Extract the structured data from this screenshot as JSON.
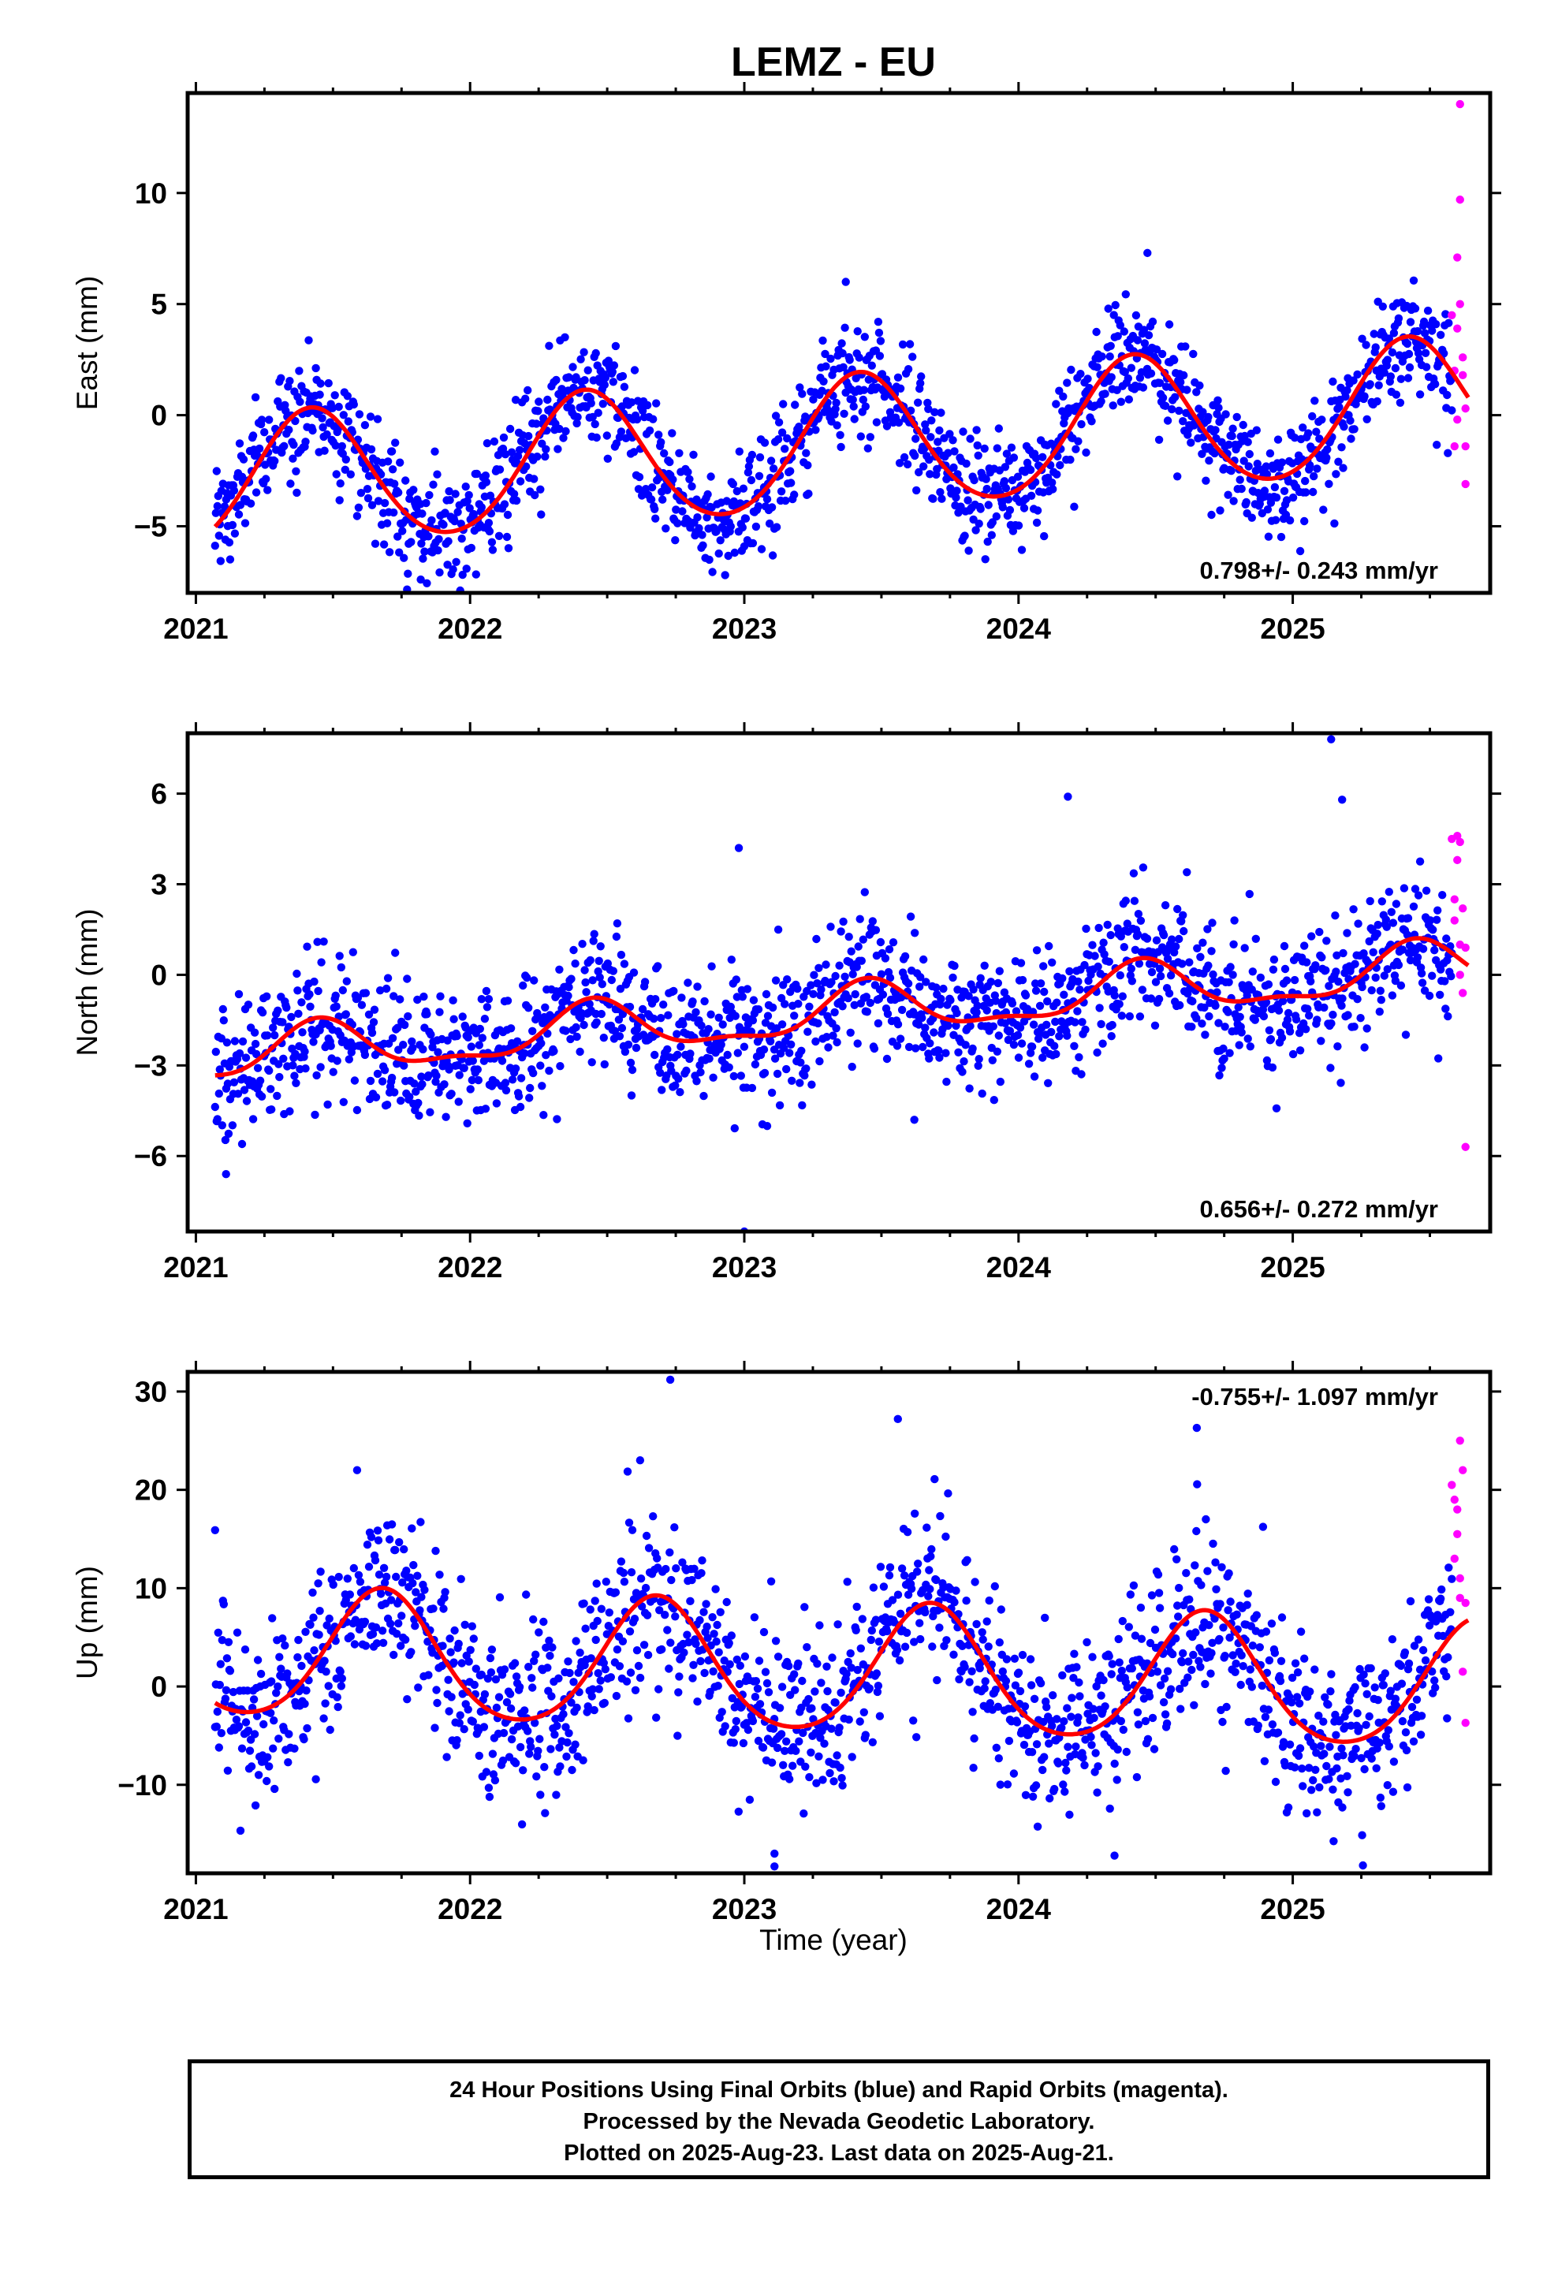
{
  "title": "LEMZ - EU",
  "xlabel": "Time (year)",
  "footer": {
    "line1": "24 Hour Positions Using Final Orbits (blue) and Rapid Orbits (magenta).",
    "line2": "Processed by the Nevada Geodetic Laboratory.",
    "line3": "Plotted on 2025-Aug-23. Last data on 2025-Aug-21."
  },
  "colors": {
    "final_orbits": "#0000ff",
    "rapid_orbits": "#ff00ff",
    "model_fit": "#ff0000",
    "axes": "#000000"
  },
  "chart_data": [
    {
      "type": "scatter",
      "ylabel": "East (mm)",
      "xlim": [
        2020.97,
        2025.72
      ],
      "ylim": [
        -8,
        14.5
      ],
      "xticks": [
        2021,
        2022,
        2023,
        2024,
        2025
      ],
      "yticks": [
        -5,
        0,
        5,
        10
      ],
      "ytick_labels": [
        "−5",
        "0",
        "5",
        "10"
      ],
      "grid": false,
      "annotation": "0.798+/- 0.243 mm/yr",
      "annotation_position": "bottom-right",
      "fit": {
        "start": 2021.07,
        "end": 2025.64,
        "offset": -1.4,
        "trend_mm_per_yr": 0.798,
        "annual_amp": 3.0,
        "annual_peak": 0.42,
        "semiannual_amp": 0.25,
        "noise_sd": 1.3
      },
      "final_orbits": {
        "name": "Final Orbits",
        "start": 2021.07,
        "end": 2025.58,
        "approx_points": 1560
      },
      "rapid_orbits": {
        "name": "Rapid Orbits",
        "x": [
          2025.58,
          2025.59,
          2025.59,
          2025.6,
          2025.6,
          2025.6,
          2025.61,
          2025.61,
          2025.61,
          2025.62,
          2025.62,
          2025.63,
          2025.63,
          2025.63
        ],
        "y": [
          4.5,
          2.0,
          -1.4,
          7.1,
          3.9,
          -0.2,
          14.0,
          9.7,
          5.0,
          2.6,
          1.8,
          -1.4,
          0.3,
          -3.1
        ]
      },
      "outliers": {
        "x": [
          2024.47,
          2022.93,
          2021.82,
          2023.37
        ],
        "y": [
          7.3,
          -7.2,
          -7.4,
          6.0
        ]
      }
    },
    {
      "type": "scatter",
      "ylabel": "North (mm)",
      "xlim": [
        2020.97,
        2025.72
      ],
      "ylim": [
        -8.5,
        8.0
      ],
      "xticks": [
        2021,
        2022,
        2023,
        2024,
        2025
      ],
      "yticks": [
        -6,
        -3,
        0,
        3,
        6
      ],
      "ytick_labels": [
        "−6",
        "−3",
        "0",
        "3",
        "6"
      ],
      "grid": false,
      "annotation": "0.656+/- 0.272 mm/yr",
      "annotation_position": "bottom-right",
      "fit": {
        "start": 2021.07,
        "end": 2025.64,
        "offset": -1.3,
        "trend_mm_per_yr": 0.656,
        "annual_amp": 0.8,
        "annual_peak": 0.45,
        "semiannual_amp": 0.3,
        "noise_sd": 1.1
      },
      "final_orbits": {
        "name": "Final Orbits",
        "start": 2021.07,
        "end": 2025.58,
        "approx_points": 1560
      },
      "rapid_orbits": {
        "name": "Rapid Orbits",
        "x": [
          2025.58,
          2025.59,
          2025.59,
          2025.6,
          2025.6,
          2025.61,
          2025.61,
          2025.61,
          2025.62,
          2025.62,
          2025.63,
          2025.63
        ],
        "y": [
          4.5,
          2.5,
          1.8,
          4.6,
          3.8,
          4.4,
          1.0,
          0.0,
          2.2,
          -0.6,
          -5.7,
          0.9
        ]
      },
      "outliers": {
        "x": [
          2023.0,
          2025.14,
          2024.18,
          2025.18,
          2022.98,
          2021.11,
          2023.62
        ],
        "y": [
          -8.5,
          7.8,
          5.9,
          5.8,
          4.2,
          -6.6,
          -4.8
        ]
      }
    },
    {
      "type": "scatter",
      "ylabel": "Up (mm)",
      "xlim": [
        2020.97,
        2025.72
      ],
      "ylim": [
        -19,
        32
      ],
      "xticks": [
        2021,
        2022,
        2023,
        2024,
        2025
      ],
      "yticks": [
        -10,
        0,
        10,
        20,
        30
      ],
      "ytick_labels": [
        "−10",
        "0",
        "10",
        "20",
        "30"
      ],
      "grid": false,
      "annotation": "-0.755+/- 1.097 mm/yr",
      "annotation_position": "top-right",
      "fit": {
        "start": 2021.07,
        "end": 2025.64,
        "offset": 1.5,
        "trend_mm_per_yr": -0.755,
        "annual_amp": 6.5,
        "annual_peak": 0.68,
        "semiannual_amp": 0.8,
        "noise_sd": 4.5
      },
      "final_orbits": {
        "name": "Final Orbits",
        "start": 2021.07,
        "end": 2025.58,
        "approx_points": 1560
      },
      "rapid_orbits": {
        "name": "Rapid Orbits",
        "x": [
          2025.58,
          2025.59,
          2025.59,
          2025.6,
          2025.6,
          2025.61,
          2025.61,
          2025.61,
          2025.62,
          2025.62,
          2025.63,
          2025.63
        ],
        "y": [
          20.5,
          19.0,
          13.0,
          18.0,
          15.5,
          11.0,
          9.0,
          25.0,
          22.0,
          1.5,
          -3.7,
          8.5
        ]
      },
      "outliers": {
        "x": [
          2022.73,
          2023.11,
          2023.11,
          2024.65,
          2023.56,
          2022.62,
          2021.07,
          2024.35
        ],
        "y": [
          31.2,
          -18.3,
          -17.0,
          26.3,
          27.2,
          23.0,
          15.9,
          -17.2
        ]
      }
    }
  ]
}
